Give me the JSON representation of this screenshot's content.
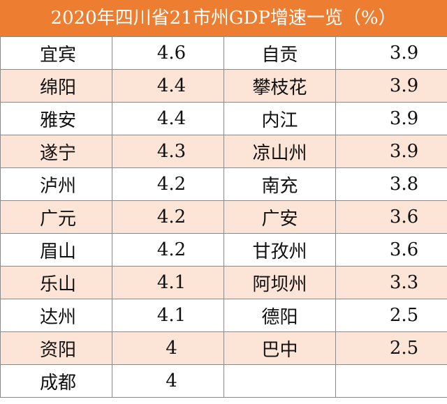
{
  "title": "2020年四川省21市州GDP增速一览（%）",
  "colors": {
    "header_bg": "#ED7D31",
    "header_text": "#FFFFFF",
    "alt_row_bg": "#FCE4D6",
    "plain_row_bg": "#FFFFFF",
    "grid_line": "#8A8A8A"
  },
  "rows": [
    {
      "city_a": "宜宾",
      "value_a": "4.6",
      "city_b": "自贡",
      "value_b": "3.9"
    },
    {
      "city_a": "绵阳",
      "value_a": "4.4",
      "city_b": "攀枝花",
      "value_b": "3.9"
    },
    {
      "city_a": "雅安",
      "value_a": "4.4",
      "city_b": "内江",
      "value_b": "3.9"
    },
    {
      "city_a": "遂宁",
      "value_a": "4.3",
      "city_b": "凉山州",
      "value_b": "3.9"
    },
    {
      "city_a": "泸州",
      "value_a": "4.2",
      "city_b": "南充",
      "value_b": "3.8"
    },
    {
      "city_a": "广元",
      "value_a": "4.2",
      "city_b": "广安",
      "value_b": "3.6"
    },
    {
      "city_a": "眉山",
      "value_a": "4.2",
      "city_b": "甘孜州",
      "value_b": "3.6"
    },
    {
      "city_a": "乐山",
      "value_a": "4.1",
      "city_b": "阿坝州",
      "value_b": "3.3"
    },
    {
      "city_a": "达州",
      "value_a": "4.1",
      "city_b": "德阳",
      "value_b": "2.5"
    },
    {
      "city_a": "资阳",
      "value_a": "4",
      "city_b": "巴中",
      "value_b": "2.5"
    },
    {
      "city_a": "成都",
      "value_a": "4",
      "city_b": "",
      "value_b": ""
    }
  ]
}
